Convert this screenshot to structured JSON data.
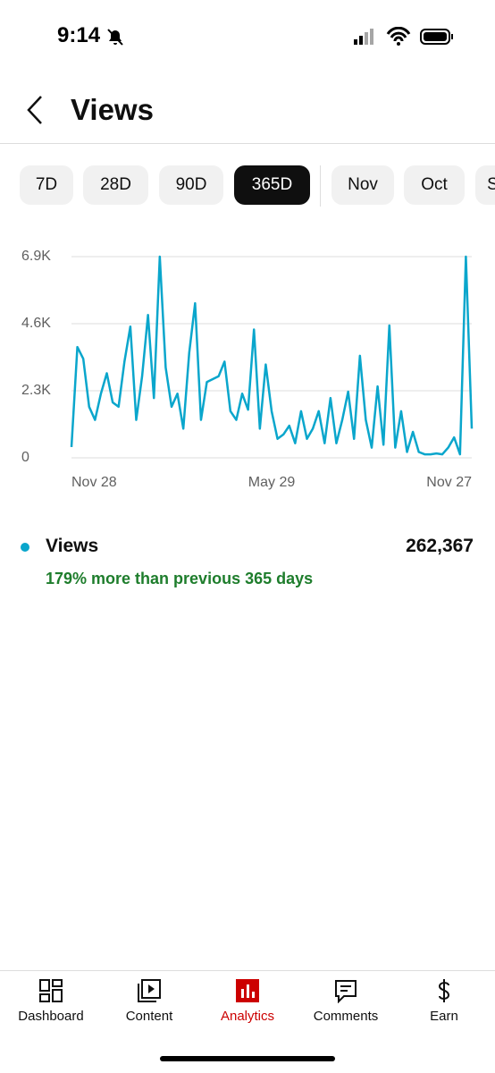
{
  "status_bar": {
    "time": "9:14"
  },
  "header": {
    "title": "Views"
  },
  "tabs": {
    "items": [
      "7D",
      "28D",
      "90D",
      "365D",
      "Nov",
      "Oct",
      "Sep"
    ],
    "selected": 3
  },
  "chart_data": {
    "type": "line",
    "categories": [
      "Nov 28",
      null,
      null,
      null,
      null,
      null,
      null,
      null,
      null,
      null,
      null,
      null,
      null,
      null,
      null,
      null,
      null,
      null,
      null,
      null,
      null,
      null,
      null,
      null,
      null,
      null,
      null,
      null,
      null,
      null,
      null,
      null,
      null,
      null,
      "May 29",
      null,
      null,
      null,
      null,
      null,
      null,
      null,
      null,
      null,
      null,
      null,
      null,
      null,
      null,
      null,
      null,
      null,
      null,
      null,
      null,
      null,
      null,
      null,
      null,
      null,
      null,
      null,
      null,
      null,
      null,
      null,
      null,
      null,
      "Nov 27"
    ],
    "series": [
      {
        "name": "Views",
        "color": "#0aa6cc",
        "values": [
          370,
          3800,
          3400,
          1750,
          1300,
          2200,
          2900,
          1900,
          1750,
          3300,
          4500,
          1300,
          2800,
          4900,
          2050,
          6900,
          3100,
          1750,
          2200,
          1000,
          3600,
          5300,
          1300,
          2600,
          2700,
          2800,
          3300,
          1600,
          1300,
          2200,
          1650,
          4400,
          1000,
          3200,
          1600,
          650,
          800,
          1100,
          500,
          1600,
          650,
          1000,
          1600,
          500,
          2050,
          500,
          1300,
          2270,
          650,
          3500,
          1300,
          350,
          2450,
          450,
          4540,
          350,
          1600,
          200,
          890,
          200,
          120,
          120,
          150,
          120,
          350,
          700,
          120,
          6900,
          1000
        ]
      }
    ],
    "ylim": [
      0,
      6900
    ],
    "yticks": [
      0,
      {
        "value": 2300,
        "label": "2.3K"
      },
      {
        "value": 4600,
        "label": "4.6K"
      },
      {
        "value": 6900,
        "label": "6.9K"
      }
    ],
    "grid": true
  },
  "summary": {
    "total": "262,367",
    "comparison": "179% more than previous 365 days"
  },
  "nav": {
    "items": [
      "Dashboard",
      "Content",
      "Analytics",
      "Comments",
      "Earn"
    ],
    "active": 2
  }
}
